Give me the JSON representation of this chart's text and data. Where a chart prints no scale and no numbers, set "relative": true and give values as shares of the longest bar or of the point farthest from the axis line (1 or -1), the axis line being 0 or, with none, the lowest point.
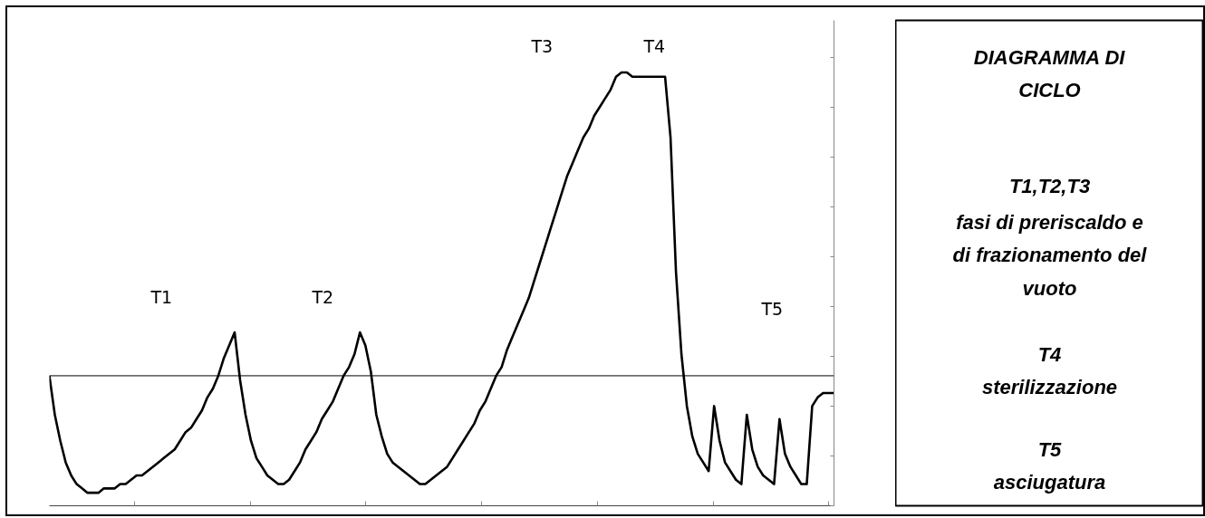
{
  "chart_data": [
    {
      "type": "line",
      "relative": true,
      "tick_labels": false,
      "grid": false,
      "marker": "none",
      "line_style": "solid",
      "categories": [
        null,
        null,
        null,
        null,
        null,
        null,
        null,
        null,
        null,
        null,
        null,
        null,
        null,
        null,
        null,
        null,
        null,
        null,
        null,
        null,
        null,
        null,
        null,
        null,
        null,
        null,
        null,
        null,
        null,
        null,
        null,
        null,
        null,
        null,
        null,
        null,
        null,
        null,
        null,
        null,
        null,
        null,
        null,
        null,
        null,
        null,
        null,
        null,
        null,
        null,
        null,
        null,
        null,
        null,
        null,
        null,
        null,
        null,
        null,
        null,
        null,
        null,
        null,
        null,
        null,
        null,
        null,
        null,
        null,
        null,
        null,
        null,
        null,
        null,
        null,
        null,
        null,
        null,
        null,
        null,
        null,
        null,
        null,
        null,
        null,
        null,
        null,
        null,
        null,
        null,
        null,
        null,
        null,
        null,
        null,
        null,
        null,
        null,
        null,
        null,
        null,
        null,
        null,
        null,
        null,
        null,
        null,
        null,
        null,
        null,
        null,
        null,
        null,
        null,
        null,
        null,
        null,
        null,
        null,
        null,
        null,
        null,
        null,
        null,
        null,
        null,
        null,
        null,
        null,
        null,
        null,
        null,
        null,
        null,
        null,
        null,
        null,
        null,
        null,
        null,
        null,
        null,
        null,
        null,
        null
      ],
      "series": [
        {
          "color": "#000000",
          "values": [
            0.3,
            0.21,
            0.15,
            0.1,
            0.07,
            0.05,
            0.04,
            0.03,
            0.03,
            0.03,
            0.04,
            0.04,
            0.04,
            0.05,
            0.05,
            0.06,
            0.07,
            0.07,
            0.08,
            0.09,
            0.1,
            0.11,
            0.12,
            0.13,
            0.15,
            0.17,
            0.18,
            0.2,
            0.22,
            0.25,
            0.27,
            0.3,
            0.34,
            0.37,
            0.4,
            0.29,
            0.21,
            0.15,
            0.11,
            0.09,
            0.07,
            0.06,
            0.05,
            0.05,
            0.06,
            0.08,
            0.1,
            0.13,
            0.15,
            0.17,
            0.2,
            0.22,
            0.24,
            0.27,
            0.3,
            0.32,
            0.35,
            0.4,
            0.37,
            0.31,
            0.21,
            0.16,
            0.12,
            0.1,
            0.09,
            0.08,
            0.07,
            0.06,
            0.05,
            0.05,
            0.06,
            0.07,
            0.08,
            0.09,
            0.11,
            0.13,
            0.15,
            0.17,
            0.19,
            0.22,
            0.24,
            0.27,
            0.3,
            0.32,
            0.36,
            0.39,
            0.42,
            0.45,
            0.48,
            0.52,
            0.56,
            0.6,
            0.64,
            0.68,
            0.72,
            0.76,
            0.79,
            0.82,
            0.85,
            0.87,
            0.9,
            0.92,
            0.94,
            0.96,
            0.99,
            1.0,
            1.0,
            0.99,
            0.99,
            0.99,
            0.99,
            0.99,
            0.99,
            0.99,
            0.85,
            0.54,
            0.35,
            0.23,
            0.16,
            0.12,
            0.1,
            0.08,
            0.23,
            0.15,
            0.1,
            0.08,
            0.06,
            0.05,
            0.21,
            0.13,
            0.09,
            0.07,
            0.06,
            0.05,
            0.2,
            0.12,
            0.09,
            0.07,
            0.05,
            0.05,
            0.23,
            0.25,
            0.26,
            0.26,
            0.26
          ]
        }
      ],
      "ref_lines": [
        {
          "axis": "y",
          "value": 0.3,
          "color": "#000000"
        }
      ],
      "annotations": [
        "T1",
        "T2",
        "T3",
        "T4",
        "T5"
      ]
    },
    {
      "type": "other",
      "title": "DIAGRAMMA DI CICLO",
      "annotations": [
        "T1,T2,T3",
        "fasi di preriscaldo e di frazionamento del vuoto",
        "T4",
        "sterilizzazione",
        "T5",
        "asciugatura"
      ]
    }
  ]
}
